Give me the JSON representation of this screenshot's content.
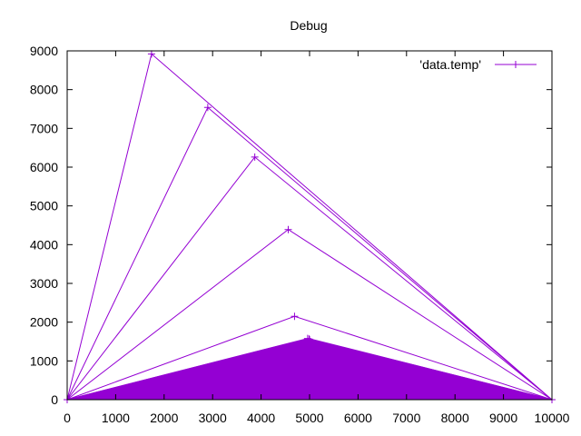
{
  "chart_data": {
    "type": "line",
    "title": "Debug",
    "xlabel": "",
    "ylabel": "",
    "xlim": [
      0,
      10000
    ],
    "ylim": [
      0,
      9000
    ],
    "x_ticks": [
      "0",
      "1000",
      "2000",
      "3000",
      "4000",
      "5000",
      "6000",
      "7000",
      "8000",
      "9000",
      "10000"
    ],
    "y_ticks": [
      "0",
      "1000",
      "2000",
      "3000",
      "4000",
      "5000",
      "6000",
      "7000",
      "8000",
      "9000"
    ],
    "grid": false,
    "legend_position": "top-right",
    "series": [
      {
        "name": "'data.temp'",
        "color": "#9400d3",
        "marker": "plus",
        "points": [
          [
            0,
            0
          ],
          [
            1740,
            8920
          ],
          [
            10000,
            0
          ],
          [
            0,
            0
          ],
          [
            2900,
            7540
          ],
          [
            10000,
            0
          ],
          [
            0,
            0
          ],
          [
            3870,
            6260
          ],
          [
            10000,
            0
          ],
          [
            0,
            0
          ],
          [
            4560,
            4390
          ],
          [
            10000,
            0
          ],
          [
            0,
            0
          ],
          [
            4690,
            2150
          ],
          [
            10000,
            0
          ],
          [
            0,
            0
          ],
          [
            4960,
            1580
          ],
          [
            10000,
            0
          ],
          [
            0,
            0
          ],
          [
            4990,
            1565
          ],
          [
            10000,
            0
          ],
          [
            0,
            0
          ],
          [
            5000,
            1550
          ],
          [
            10000,
            0
          ]
        ],
        "filled_region": [
          [
            0,
            0
          ],
          [
            4980,
            1580
          ],
          [
            10000,
            0
          ]
        ]
      }
    ]
  }
}
